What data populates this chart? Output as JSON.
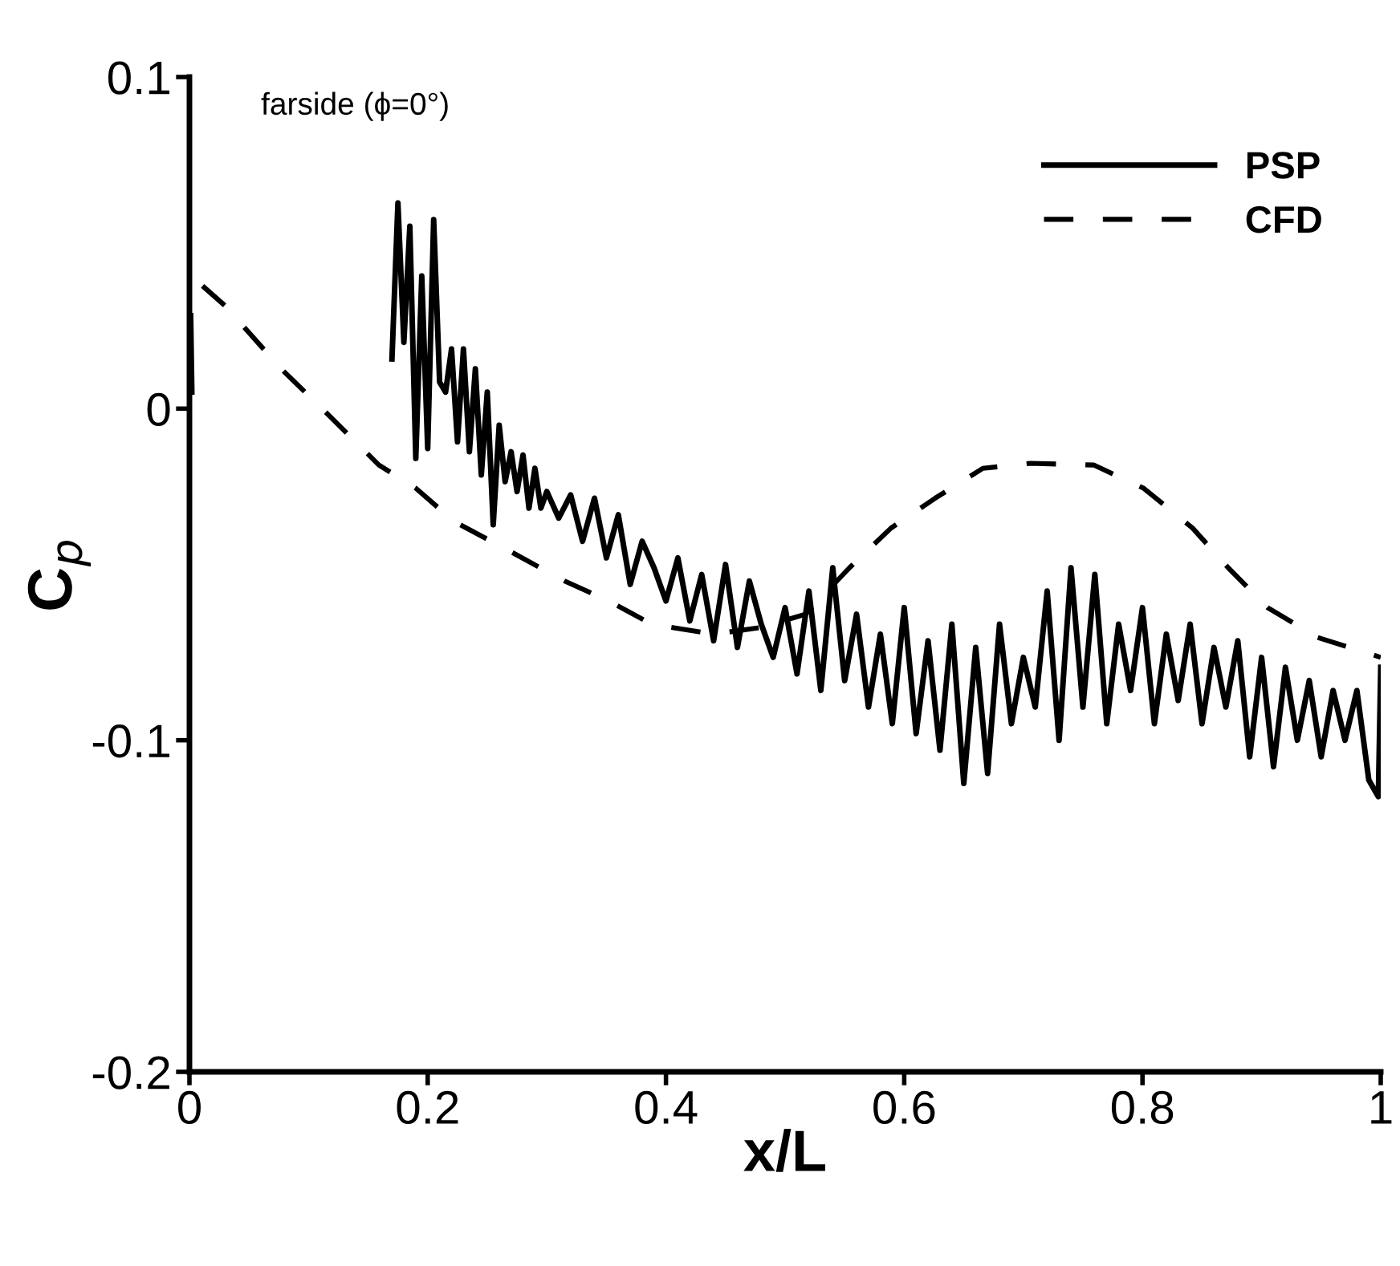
{
  "chart_data": {
    "type": "line",
    "xlabel": "x/L",
    "ylabel": "C$_{p}$",
    "annotations": [
      "farside (ϕ=0°)"
    ],
    "xlim": [
      0,
      1
    ],
    "ylim": [
      -0.2,
      0.1
    ],
    "xticks": [
      0,
      0.2,
      0.4,
      0.6,
      0.8,
      1
    ],
    "yticks": [
      {
        "value": -0.2,
        "label": "-0.2"
      },
      {
        "value": -0.1,
        "label": "-0.1"
      },
      0,
      0.1
    ],
    "grid": false,
    "legend": "top right",
    "series": [
      {
        "name": "PSP",
        "color": "#000000",
        "line_style": "solid",
        "x": [
          0.001,
          0.002,
          0.1,
          0.17,
          0.175,
          0.18,
          0.185,
          0.19,
          0.195,
          0.2,
          0.205,
          0.21,
          0.215,
          0.22,
          0.225,
          0.23,
          0.235,
          0.24,
          0.245,
          0.25,
          0.255,
          0.26,
          0.265,
          0.27,
          0.275,
          0.28,
          0.285,
          0.29,
          0.295,
          0.3,
          0.31,
          0.32,
          0.33,
          0.34,
          0.35,
          0.36,
          0.37,
          0.38,
          0.39,
          0.4,
          0.41,
          0.42,
          0.43,
          0.44,
          0.45,
          0.46,
          0.47,
          0.48,
          0.49,
          0.5,
          0.51,
          0.52,
          0.53,
          0.54,
          0.55,
          0.56,
          0.57,
          0.58,
          0.59,
          0.6,
          0.61,
          0.62,
          0.63,
          0.64,
          0.65,
          0.66,
          0.67,
          0.68,
          0.69,
          0.7,
          0.71,
          0.72,
          0.73,
          0.74,
          0.75,
          0.76,
          0.77,
          0.78,
          0.79,
          0.8,
          0.81,
          0.82,
          0.83,
          0.84,
          0.85,
          0.86,
          0.87,
          0.88,
          0.89,
          0.9,
          0.91,
          0.92,
          0.93,
          0.94,
          0.95,
          0.96,
          0.97,
          0.98,
          0.99,
          0.998,
          1.0
        ],
        "values": [
          0.028,
          0.005,
          null,
          0.015,
          0.062,
          0.02,
          0.055,
          -0.015,
          0.04,
          -0.012,
          0.057,
          0.008,
          0.005,
          0.018,
          -0.01,
          0.018,
          -0.013,
          0.012,
          -0.02,
          0.005,
          -0.035,
          -0.005,
          -0.022,
          -0.013,
          -0.025,
          -0.014,
          -0.03,
          -0.018,
          -0.03,
          -0.025,
          -0.033,
          -0.026,
          -0.04,
          -0.027,
          -0.045,
          -0.032,
          -0.053,
          -0.04,
          -0.048,
          -0.058,
          -0.045,
          -0.064,
          -0.05,
          -0.07,
          -0.047,
          -0.072,
          -0.052,
          -0.065,
          -0.075,
          -0.06,
          -0.08,
          -0.055,
          -0.085,
          -0.048,
          -0.082,
          -0.062,
          -0.09,
          -0.068,
          -0.095,
          -0.06,
          -0.098,
          -0.07,
          -0.103,
          -0.065,
          -0.113,
          -0.072,
          -0.11,
          -0.065,
          -0.095,
          -0.075,
          -0.09,
          -0.055,
          -0.1,
          -0.048,
          -0.09,
          -0.05,
          -0.095,
          -0.065,
          -0.085,
          -0.06,
          -0.095,
          -0.068,
          -0.088,
          -0.065,
          -0.095,
          -0.072,
          -0.09,
          -0.07,
          -0.105,
          -0.075,
          -0.108,
          -0.078,
          -0.1,
          -0.082,
          -0.105,
          -0.085,
          -0.1,
          -0.085,
          -0.112,
          -0.117,
          -0.078
        ]
      },
      {
        "name": "CFD",
        "color": "#000000",
        "line_style": "dashed",
        "x": [
          0.011,
          0.03,
          0.077,
          0.117,
          0.159,
          0.19,
          0.222,
          0.269,
          0.315,
          0.352,
          0.388,
          0.44,
          0.48,
          0.517,
          0.554,
          0.589,
          0.626,
          0.666,
          0.706,
          0.759,
          0.801,
          0.842,
          0.872,
          0.905,
          0.947,
          1.0
        ],
        "values": [
          0.037,
          0.031,
          0.012,
          -0.002,
          -0.017,
          -0.024,
          -0.034,
          -0.043,
          -0.052,
          -0.058,
          -0.065,
          -0.068,
          -0.066,
          -0.062,
          -0.048,
          -0.036,
          -0.027,
          -0.018,
          -0.0165,
          -0.017,
          -0.024,
          -0.036,
          -0.048,
          -0.06,
          -0.069,
          -0.075
        ]
      }
    ]
  }
}
